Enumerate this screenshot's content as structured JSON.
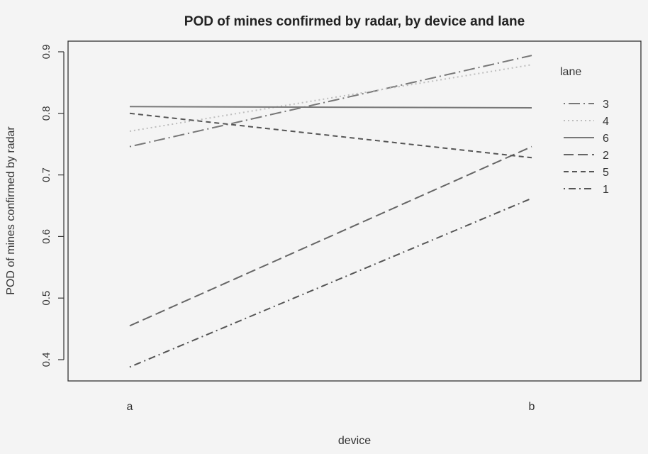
{
  "chart_data": {
    "type": "line",
    "title": "POD of mines confirmed by radar, by device and lane",
    "xlabel": "device",
    "ylabel": "POD of mines confirmed by radar",
    "categories": [
      "a",
      "b"
    ],
    "yticks": [
      "0.4",
      "0.5",
      "0.6",
      "0.7",
      "0.8",
      "0.9"
    ],
    "ylim": [
      0.38,
      0.92
    ],
    "grid": false,
    "legend": {
      "title": "lane",
      "placement": "right"
    },
    "series": [
      {
        "name": "3",
        "values": [
          0.746,
          0.894
        ],
        "color": "#777777",
        "dash": "dotdash-long"
      },
      {
        "name": "4",
        "values": [
          0.771,
          0.879
        ],
        "color": "#bdbdbd",
        "dash": "dotted"
      },
      {
        "name": "6",
        "values": [
          0.811,
          0.809
        ],
        "color": "#777777",
        "dash": "solid"
      },
      {
        "name": "2",
        "values": [
          0.455,
          0.746
        ],
        "color": "#666666",
        "dash": "longdash"
      },
      {
        "name": "5",
        "values": [
          0.8,
          0.728
        ],
        "color": "#555555",
        "dash": "dashed"
      },
      {
        "name": "1",
        "values": [
          0.388,
          0.662
        ],
        "color": "#555555",
        "dash": "dotdash"
      }
    ]
  }
}
